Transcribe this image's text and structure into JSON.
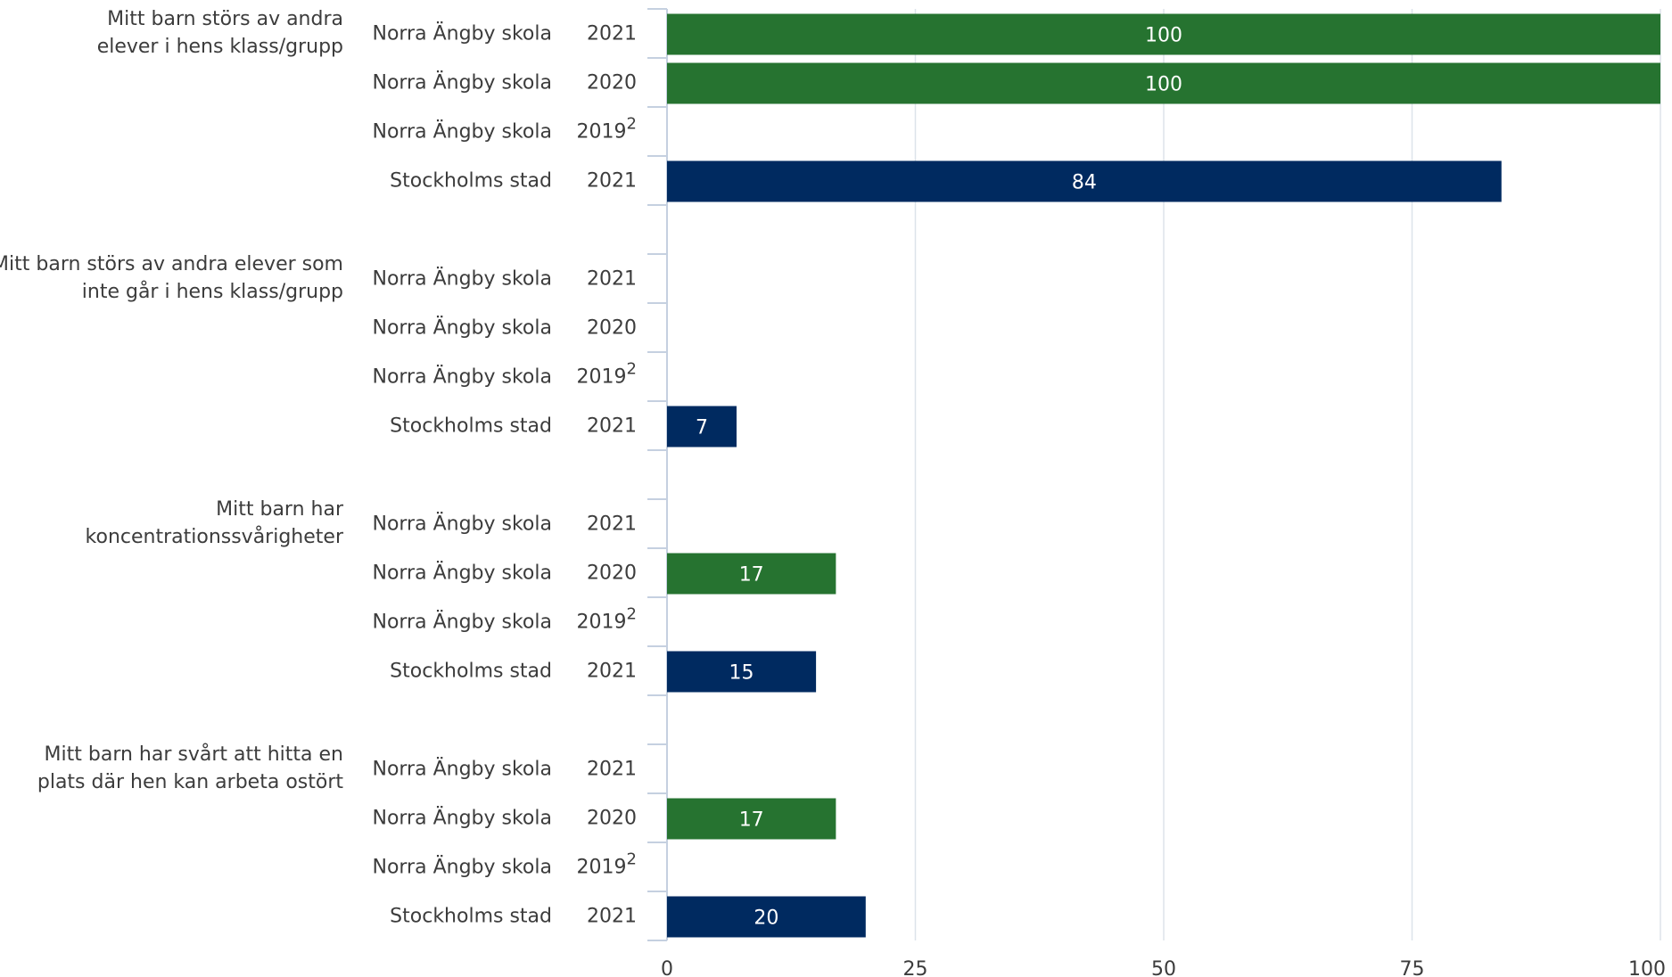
{
  "chart_data": {
    "type": "bar",
    "orientation": "horizontal",
    "xlim": [
      0,
      100
    ],
    "xticks": [
      0,
      25,
      50,
      75,
      100
    ],
    "grid": true,
    "groups": [
      {
        "label": [
          "Mitt barn störs av andra",
          "elever i hens klass/grupp"
        ],
        "rows": [
          {
            "entity": "Norra Ängby skola",
            "year": "2021",
            "value": 100,
            "color": "#267330"
          },
          {
            "entity": "Norra Ängby skola",
            "year": "2020",
            "value": 100,
            "color": "#267330"
          },
          {
            "entity": "Norra Ängby skola",
            "year": "2019",
            "note": "2",
            "value": null,
            "color": "#267330"
          },
          {
            "entity": "Stockholms stad",
            "year": "2021",
            "value": 84,
            "color": "#002a60"
          }
        ]
      },
      {
        "label": [
          "Mitt barn störs av andra elever som",
          "inte går i hens klass/grupp"
        ],
        "rows": [
          {
            "entity": "Norra Ängby skola",
            "year": "2021",
            "value": null,
            "color": "#267330"
          },
          {
            "entity": "Norra Ängby skola",
            "year": "2020",
            "value": null,
            "color": "#267330"
          },
          {
            "entity": "Norra Ängby skola",
            "year": "2019",
            "note": "2",
            "value": null,
            "color": "#267330"
          },
          {
            "entity": "Stockholms stad",
            "year": "2021",
            "value": 7,
            "color": "#002a60"
          }
        ]
      },
      {
        "label": [
          "Mitt barn har",
          "koncentrationssvårigheter"
        ],
        "rows": [
          {
            "entity": "Norra Ängby skola",
            "year": "2021",
            "value": null,
            "color": "#267330"
          },
          {
            "entity": "Norra Ängby skola",
            "year": "2020",
            "value": 17,
            "color": "#267330"
          },
          {
            "entity": "Norra Ängby skola",
            "year": "2019",
            "note": "2",
            "value": null,
            "color": "#267330"
          },
          {
            "entity": "Stockholms stad",
            "year": "2021",
            "value": 15,
            "color": "#002a60"
          }
        ]
      },
      {
        "label": [
          "Mitt barn har svårt att hitta en",
          "plats där hen kan arbeta ostört"
        ],
        "rows": [
          {
            "entity": "Norra Ängby skola",
            "year": "2021",
            "value": null,
            "color": "#267330"
          },
          {
            "entity": "Norra Ängby skola",
            "year": "2020",
            "value": 17,
            "color": "#267330"
          },
          {
            "entity": "Norra Ängby skola",
            "year": "2019",
            "note": "2",
            "value": null,
            "color": "#267330"
          },
          {
            "entity": "Stockholms stad",
            "year": "2021",
            "value": 20,
            "color": "#002a60"
          }
        ]
      }
    ]
  }
}
